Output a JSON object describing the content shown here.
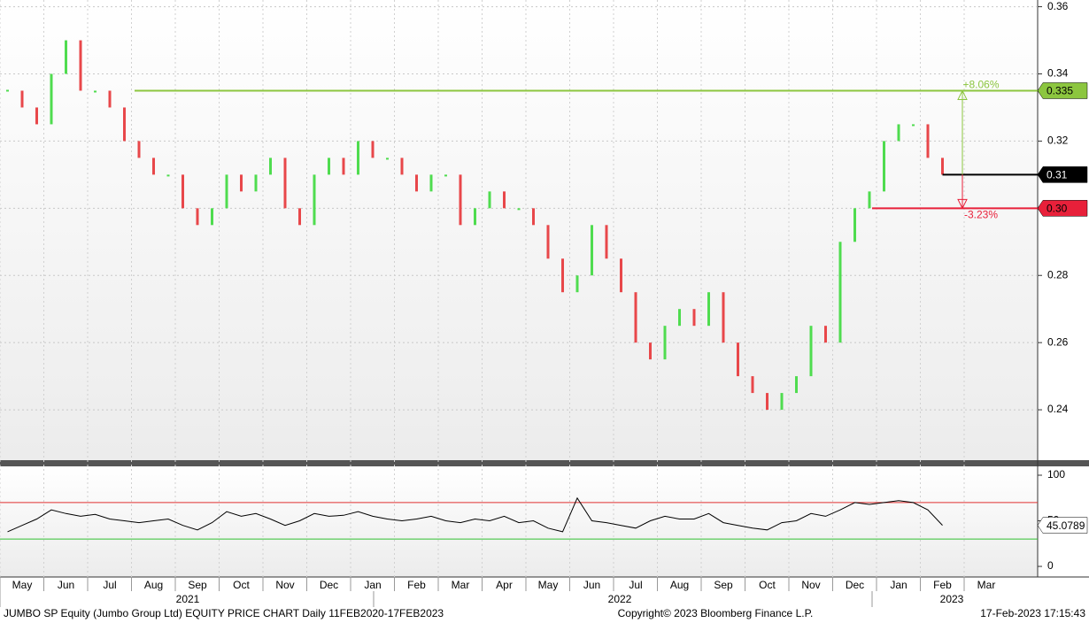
{
  "chart_data": {
    "type": "price-bars",
    "footer_left": "JUMBO SP Equity (Jumbo Group Ltd) EQUITY PRICE CHART  Daily 11FEB2020-17FEB2023",
    "footer_center": "Copyright© 2023 Bloomberg Finance L.P.",
    "footer_right": "17-Feb-2023 17:15:43",
    "categories": [
      null,
      "May",
      null,
      null,
      "Jun",
      null,
      null,
      "Jul",
      null,
      null,
      "Aug",
      null,
      null,
      "Sep",
      null,
      null,
      "Oct",
      null,
      null,
      "Nov",
      null,
      null,
      "Dec",
      null,
      null,
      "Jan",
      null,
      null,
      "Feb",
      null,
      null,
      "Mar",
      null,
      null,
      "Apr",
      null,
      null,
      "May",
      null,
      null,
      "Jun",
      null,
      null,
      "Jul",
      null,
      null,
      "Aug",
      null,
      null,
      "Sep",
      null,
      null,
      "Oct",
      null,
      null,
      "Nov",
      null,
      null,
      "Dec",
      null,
      null,
      "Jan",
      null,
      null,
      "Feb",
      null,
      null,
      "Mar",
      null
    ],
    "years": [
      "2021",
      "2022",
      "2023"
    ],
    "series": [
      {
        "name": "Price",
        "up_color": "#4fdc4f",
        "down_color": "#e8474a",
        "values": [
          0.335,
          0.33,
          0.325,
          0.34,
          0.35,
          0.335,
          0.335,
          0.33,
          0.32,
          0.315,
          0.31,
          0.31,
          0.3,
          0.295,
          0.3,
          0.31,
          0.305,
          0.31,
          0.315,
          0.3,
          0.295,
          0.31,
          0.315,
          0.31,
          0.32,
          0.315,
          0.315,
          0.31,
          0.305,
          0.31,
          0.31,
          0.295,
          0.3,
          0.305,
          0.3,
          0.3,
          0.295,
          0.285,
          0.275,
          0.28,
          0.295,
          0.285,
          0.275,
          0.26,
          0.255,
          0.265,
          0.27,
          0.265,
          0.275,
          0.26,
          0.25,
          0.245,
          0.24,
          0.245,
          0.25,
          0.265,
          0.26,
          0.29,
          0.3,
          0.305,
          0.32,
          0.325,
          0.325,
          0.315,
          0.31,
          null,
          null,
          null,
          null
        ]
      },
      {
        "name": "RSI",
        "axis": "y2",
        "color": "#000000",
        "values": [
          38,
          45,
          52,
          62,
          58,
          55,
          57,
          52,
          50,
          48,
          50,
          52,
          45,
          40,
          48,
          60,
          55,
          58,
          52,
          45,
          50,
          58,
          55,
          56,
          60,
          55,
          52,
          50,
          52,
          55,
          50,
          48,
          52,
          50,
          55,
          48,
          50,
          42,
          38,
          75,
          50,
          48,
          45,
          42,
          50,
          55,
          52,
          52,
          58,
          48,
          45,
          42,
          40,
          48,
          50,
          58,
          55,
          62,
          70,
          68,
          70,
          72,
          70,
          62,
          45.0789,
          null,
          null,
          null,
          null
        ]
      }
    ],
    "ylim": [
      0.225,
      0.362
    ],
    "yticks": [
      0.24,
      0.26,
      0.28,
      {
        "value": 0.3,
        "label": "0.30"
      },
      0.32,
      0.34,
      0.36
    ],
    "y2lim": [
      -11.6,
      109.7
    ],
    "y2ticks": [
      0,
      50,
      100
    ],
    "rsi_bands": [
      {
        "value": 70,
        "color": "#e03030"
      },
      {
        "value": 30,
        "color": "#30c030"
      }
    ],
    "levels": [
      {
        "value": 0.335,
        "change": "+8.06%",
        "color": "#8cc63f"
      },
      {
        "value": 0.3,
        "label": "0.30",
        "change": "-3.23%",
        "color": "#e8203a"
      }
    ],
    "grid": true
  }
}
